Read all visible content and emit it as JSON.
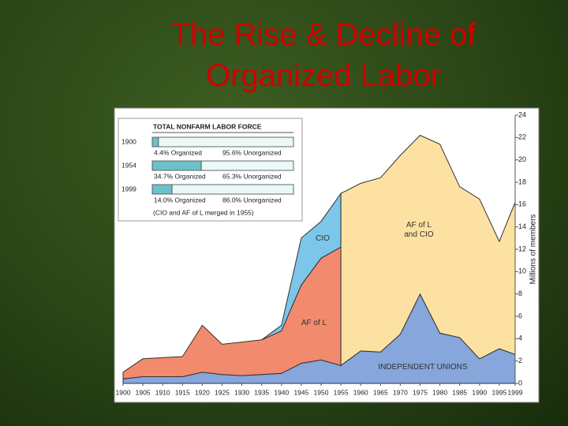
{
  "title": "The Rise & Decline of Organized Labor",
  "chart_data": [
    {
      "type": "area",
      "y_label": "Millions of members",
      "x": [
        1900,
        1905,
        1910,
        1915,
        1920,
        1925,
        1930,
        1935,
        1940,
        1945,
        1950,
        1955,
        1960,
        1965,
        1970,
        1975,
        1980,
        1985,
        1990,
        1995,
        1999
      ],
      "xlim": [
        1900,
        1999
      ],
      "xticks": [
        1900,
        1905,
        1910,
        1915,
        1920,
        1925,
        1930,
        1935,
        1940,
        1945,
        1950,
        1955,
        1960,
        1965,
        1970,
        1975,
        1980,
        1985,
        1990,
        1995,
        1999
      ],
      "ylim": [
        0,
        24
      ],
      "yticks": [
        0,
        2,
        4,
        6,
        8,
        10,
        12,
        14,
        16,
        18,
        20,
        22,
        24
      ],
      "series": [
        {
          "name": "INDEPENDENT UNIONS",
          "color": "#86a6dc",
          "values": [
            0.4,
            0.6,
            0.6,
            0.6,
            1.0,
            0.8,
            0.7,
            0.8,
            0.9,
            1.8,
            2.1,
            1.6,
            2.9,
            2.8,
            4.4,
            8.0,
            4.5,
            4.1,
            2.2,
            3.1,
            2.6
          ]
        },
        {
          "name": "AF of L",
          "color": "#f28a6e",
          "values": [
            0.6,
            1.6,
            1.7,
            1.8,
            4.2,
            2.7,
            3.0,
            3.1,
            3.8,
            7.0,
            9.1,
            10.6,
            null,
            null,
            null,
            null,
            null,
            null,
            null,
            null,
            null
          ]
        },
        {
          "name": "CIO",
          "color": "#7cc6ea",
          "values": [
            null,
            null,
            null,
            null,
            null,
            null,
            null,
            0,
            0.5,
            4.2,
            3.3,
            4.8,
            null,
            null,
            null,
            null,
            null,
            null,
            null,
            null,
            null
          ]
        },
        {
          "name": "AF of L and CIO",
          "color": "#fde1a2",
          "values": [
            null,
            null,
            null,
            null,
            null,
            null,
            null,
            null,
            null,
            null,
            null,
            15.4,
            15.0,
            15.6,
            16.0,
            14.2,
            16.9,
            13.5,
            14.3,
            9.6,
            13.6
          ]
        }
      ]
    },
    {
      "type": "bar",
      "horizontal": true,
      "title": "TOTAL NONFARM LABOR FORCE",
      "note": "(CIO and AF of L merged in 1955)",
      "categories": [
        "1900",
        "1954",
        "1999"
      ],
      "xlim": [
        0,
        100
      ],
      "series": [
        {
          "color": "#6cc2cc",
          "values": [
            4.4,
            34.7,
            14.0
          ],
          "value_labels": [
            "4.4% Organized",
            "34.7% Organized",
            "14.0% Organized"
          ]
        },
        {
          "color": "#eaf8f8",
          "values": [
            95.6,
            65.3,
            86.0
          ],
          "value_labels": [
            "95.6% Unorganized",
            "65.3% Unorganized",
            "86.0% Unorganized"
          ]
        }
      ]
    }
  ]
}
